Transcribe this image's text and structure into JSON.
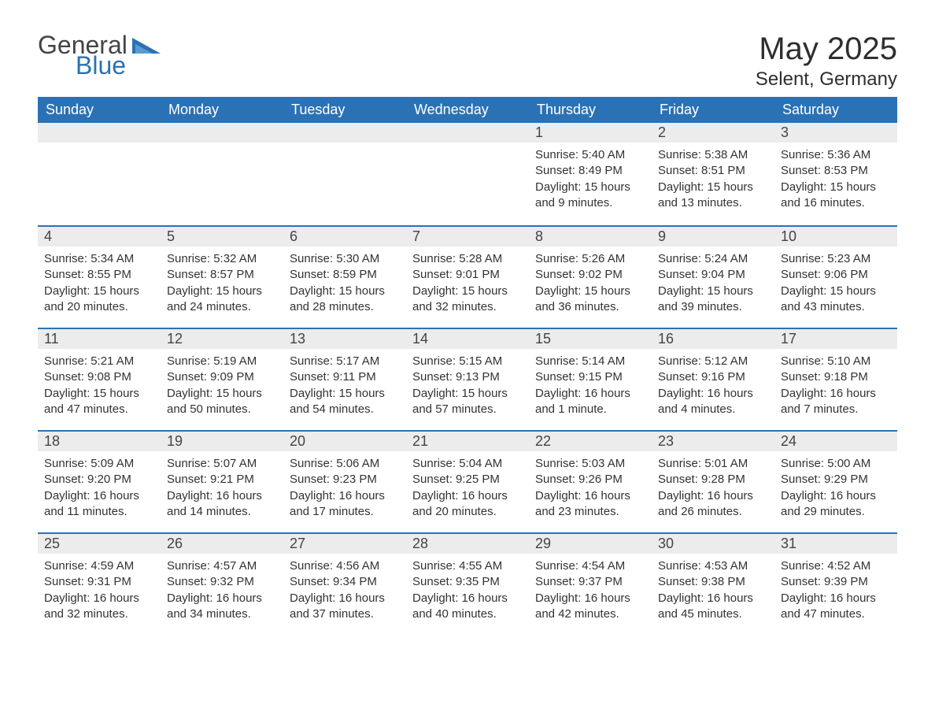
{
  "logo": {
    "general": "General",
    "blue": "Blue",
    "icon_color": "#2a72b5"
  },
  "title": "May 2025",
  "location": "Selent, Germany",
  "day_headers": [
    "Sunday",
    "Monday",
    "Tuesday",
    "Wednesday",
    "Thursday",
    "Friday",
    "Saturday"
  ],
  "colors": {
    "header_bg": "#2a72b5",
    "header_fg": "#ffffff",
    "daynum_bg": "#ececec",
    "cell_border": "#2a72b5",
    "text": "#333333",
    "page_bg": "#ffffff"
  },
  "weeks": [
    [
      null,
      null,
      null,
      null,
      {
        "num": "1",
        "sunrise": "Sunrise: 5:40 AM",
        "sunset": "Sunset: 8:49 PM",
        "daylight": "Daylight: 15 hours and 9 minutes."
      },
      {
        "num": "2",
        "sunrise": "Sunrise: 5:38 AM",
        "sunset": "Sunset: 8:51 PM",
        "daylight": "Daylight: 15 hours and 13 minutes."
      },
      {
        "num": "3",
        "sunrise": "Sunrise: 5:36 AM",
        "sunset": "Sunset: 8:53 PM",
        "daylight": "Daylight: 15 hours and 16 minutes."
      }
    ],
    [
      {
        "num": "4",
        "sunrise": "Sunrise: 5:34 AM",
        "sunset": "Sunset: 8:55 PM",
        "daylight": "Daylight: 15 hours and 20 minutes."
      },
      {
        "num": "5",
        "sunrise": "Sunrise: 5:32 AM",
        "sunset": "Sunset: 8:57 PM",
        "daylight": "Daylight: 15 hours and 24 minutes."
      },
      {
        "num": "6",
        "sunrise": "Sunrise: 5:30 AM",
        "sunset": "Sunset: 8:59 PM",
        "daylight": "Daylight: 15 hours and 28 minutes."
      },
      {
        "num": "7",
        "sunrise": "Sunrise: 5:28 AM",
        "sunset": "Sunset: 9:01 PM",
        "daylight": "Daylight: 15 hours and 32 minutes."
      },
      {
        "num": "8",
        "sunrise": "Sunrise: 5:26 AM",
        "sunset": "Sunset: 9:02 PM",
        "daylight": "Daylight: 15 hours and 36 minutes."
      },
      {
        "num": "9",
        "sunrise": "Sunrise: 5:24 AM",
        "sunset": "Sunset: 9:04 PM",
        "daylight": "Daylight: 15 hours and 39 minutes."
      },
      {
        "num": "10",
        "sunrise": "Sunrise: 5:23 AM",
        "sunset": "Sunset: 9:06 PM",
        "daylight": "Daylight: 15 hours and 43 minutes."
      }
    ],
    [
      {
        "num": "11",
        "sunrise": "Sunrise: 5:21 AM",
        "sunset": "Sunset: 9:08 PM",
        "daylight": "Daylight: 15 hours and 47 minutes."
      },
      {
        "num": "12",
        "sunrise": "Sunrise: 5:19 AM",
        "sunset": "Sunset: 9:09 PM",
        "daylight": "Daylight: 15 hours and 50 minutes."
      },
      {
        "num": "13",
        "sunrise": "Sunrise: 5:17 AM",
        "sunset": "Sunset: 9:11 PM",
        "daylight": "Daylight: 15 hours and 54 minutes."
      },
      {
        "num": "14",
        "sunrise": "Sunrise: 5:15 AM",
        "sunset": "Sunset: 9:13 PM",
        "daylight": "Daylight: 15 hours and 57 minutes."
      },
      {
        "num": "15",
        "sunrise": "Sunrise: 5:14 AM",
        "sunset": "Sunset: 9:15 PM",
        "daylight": "Daylight: 16 hours and 1 minute."
      },
      {
        "num": "16",
        "sunrise": "Sunrise: 5:12 AM",
        "sunset": "Sunset: 9:16 PM",
        "daylight": "Daylight: 16 hours and 4 minutes."
      },
      {
        "num": "17",
        "sunrise": "Sunrise: 5:10 AM",
        "sunset": "Sunset: 9:18 PM",
        "daylight": "Daylight: 16 hours and 7 minutes."
      }
    ],
    [
      {
        "num": "18",
        "sunrise": "Sunrise: 5:09 AM",
        "sunset": "Sunset: 9:20 PM",
        "daylight": "Daylight: 16 hours and 11 minutes."
      },
      {
        "num": "19",
        "sunrise": "Sunrise: 5:07 AM",
        "sunset": "Sunset: 9:21 PM",
        "daylight": "Daylight: 16 hours and 14 minutes."
      },
      {
        "num": "20",
        "sunrise": "Sunrise: 5:06 AM",
        "sunset": "Sunset: 9:23 PM",
        "daylight": "Daylight: 16 hours and 17 minutes."
      },
      {
        "num": "21",
        "sunrise": "Sunrise: 5:04 AM",
        "sunset": "Sunset: 9:25 PM",
        "daylight": "Daylight: 16 hours and 20 minutes."
      },
      {
        "num": "22",
        "sunrise": "Sunrise: 5:03 AM",
        "sunset": "Sunset: 9:26 PM",
        "daylight": "Daylight: 16 hours and 23 minutes."
      },
      {
        "num": "23",
        "sunrise": "Sunrise: 5:01 AM",
        "sunset": "Sunset: 9:28 PM",
        "daylight": "Daylight: 16 hours and 26 minutes."
      },
      {
        "num": "24",
        "sunrise": "Sunrise: 5:00 AM",
        "sunset": "Sunset: 9:29 PM",
        "daylight": "Daylight: 16 hours and 29 minutes."
      }
    ],
    [
      {
        "num": "25",
        "sunrise": "Sunrise: 4:59 AM",
        "sunset": "Sunset: 9:31 PM",
        "daylight": "Daylight: 16 hours and 32 minutes."
      },
      {
        "num": "26",
        "sunrise": "Sunrise: 4:57 AM",
        "sunset": "Sunset: 9:32 PM",
        "daylight": "Daylight: 16 hours and 34 minutes."
      },
      {
        "num": "27",
        "sunrise": "Sunrise: 4:56 AM",
        "sunset": "Sunset: 9:34 PM",
        "daylight": "Daylight: 16 hours and 37 minutes."
      },
      {
        "num": "28",
        "sunrise": "Sunrise: 4:55 AM",
        "sunset": "Sunset: 9:35 PM",
        "daylight": "Daylight: 16 hours and 40 minutes."
      },
      {
        "num": "29",
        "sunrise": "Sunrise: 4:54 AM",
        "sunset": "Sunset: 9:37 PM",
        "daylight": "Daylight: 16 hours and 42 minutes."
      },
      {
        "num": "30",
        "sunrise": "Sunrise: 4:53 AM",
        "sunset": "Sunset: 9:38 PM",
        "daylight": "Daylight: 16 hours and 45 minutes."
      },
      {
        "num": "31",
        "sunrise": "Sunrise: 4:52 AM",
        "sunset": "Sunset: 9:39 PM",
        "daylight": "Daylight: 16 hours and 47 minutes."
      }
    ]
  ]
}
